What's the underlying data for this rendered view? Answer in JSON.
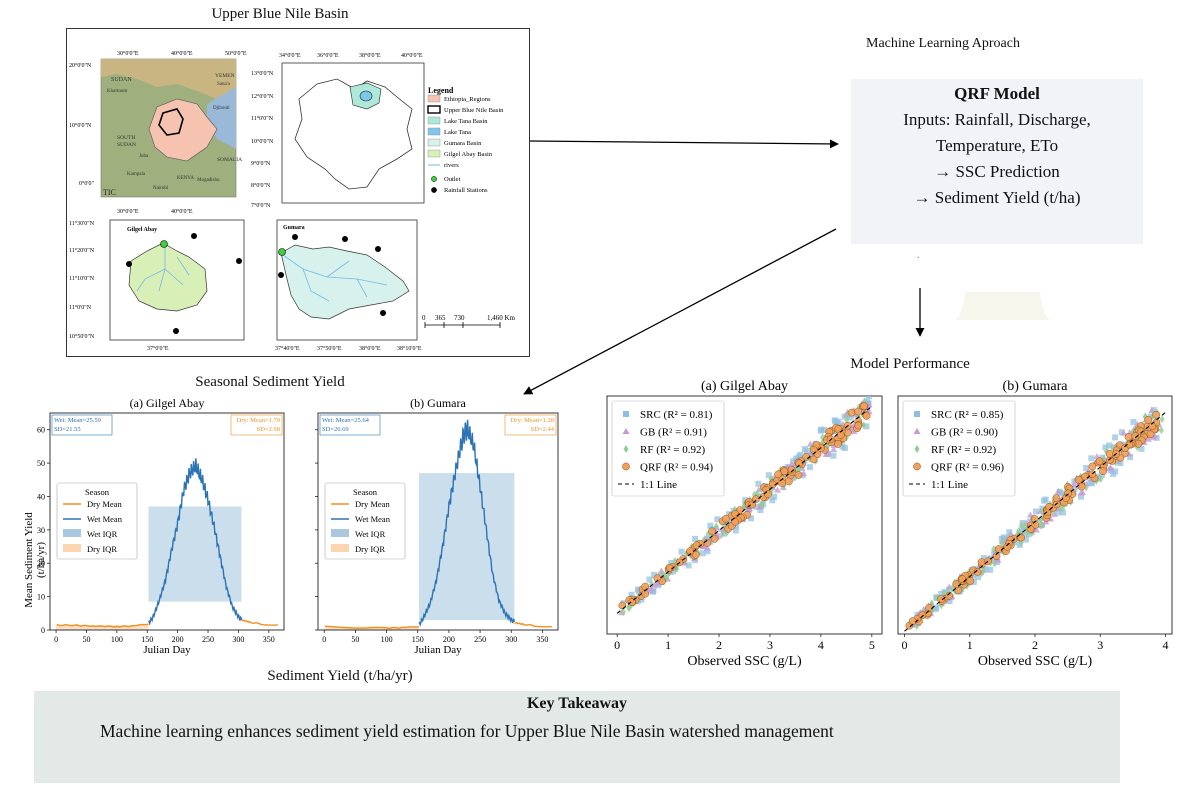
{
  "map_panel": {
    "title": "Upper Blue Nile Basin",
    "lon_ticks_a": [
      "30°0'0\"E",
      "40°0'0\"E",
      "50°0'0\"E"
    ],
    "lat_ticks_a": [
      "20°0'0\"N",
      "10°0'0\"N",
      "0°0'0\""
    ],
    "lon_ticks_b": [
      "34°0'0\"E",
      "36°0'0\"E",
      "38°0'0\"E",
      "40°0'0\"E"
    ],
    "lat_ticks_b": [
      "13°0'0\"N",
      "12°0'0\"N",
      "11°0'0\"N",
      "10°0'0\"N",
      "9°0'0\"N",
      "8°0'0\"N",
      "7°0'0\"N"
    ],
    "lon_ticks_c": [
      "30°0'0\"E",
      "40°0'0\"E"
    ],
    "lat_ticks_c": [
      "11°30'0\"N",
      "11°20'0\"N",
      "11°10'0\"N",
      "11°0'0\"N",
      "10°50'0\"N"
    ],
    "lon_tick_c_bottom": "37°0'0\"E",
    "lon_ticks_d_bottom": [
      "37°40'0\"E",
      "37°50'0\"E",
      "38°0'0\"E",
      "38°10'0\"E"
    ],
    "place_labels": [
      "SUDAN",
      "Khartoum",
      "YEMEN",
      "Sana'a",
      "Djibouti",
      "SOUTH",
      "SUDAN",
      "Juba",
      "SOMALIA",
      "Kampala",
      "Mogadishu",
      "Nairobi",
      "KENYA",
      "TIC"
    ],
    "inset_c_label": "Gilgel Abay",
    "inset_d_label": "Gumara",
    "legend_title": "Legend",
    "legend": [
      {
        "label": "Ethiopia_Regions",
        "color": "#f5c3b0",
        "kind": "fill"
      },
      {
        "label": "Upper Blue Nile Basin",
        "color": "#000000",
        "kind": "outline"
      },
      {
        "label": "Lake Tana Basin",
        "color": "#aee8d8",
        "kind": "fill"
      },
      {
        "label": "Lake Tana",
        "color": "#7ec6ec",
        "kind": "fill"
      },
      {
        "label": "Gumara Basin",
        "color": "#d7f2ec",
        "kind": "fill"
      },
      {
        "label": "Gilgel Abay Basin",
        "color": "#d9efb8",
        "kind": "fill"
      },
      {
        "label": "rivers",
        "color": "#74b7e3",
        "kind": "line"
      },
      {
        "label": "Outlet",
        "color": "#3ad13a",
        "kind": "point"
      },
      {
        "label": "Rainfall Stations",
        "color": "#000000",
        "kind": "point"
      }
    ],
    "scalebar": [
      "0",
      "365",
      "730",
      "1,460 Km"
    ]
  },
  "ml": {
    "title": "Machine Learning Aproach",
    "qrf_title": "QRF Model",
    "qrf_lines": [
      "Inputs: Rainfall, Discharge,",
      "Temperature, ETo",
      "→ SSC Prediction",
      "→ Sediment Yield (t/ha)"
    ],
    "dot": "."
  },
  "seasonal": {
    "title": "Seasonal Sediment Yield",
    "bottom_label": "Sediment Yield (t/ha/yr)",
    "ylabel_line1": "Mean Sediment Yield",
    "ylabel_line2": "(t/ha/yr)",
    "xlabel": "Julian Day",
    "yticks": [
      "0",
      "10",
      "20",
      "30",
      "40",
      "50",
      "60"
    ],
    "xticks": [
      "0",
      "50",
      "100",
      "150",
      "200",
      "250",
      "300",
      "350"
    ],
    "legend_title": "Season",
    "legend_items": [
      "Dry Mean",
      "Wet Mean",
      "Wet IQR",
      "Dry IQR"
    ],
    "panels": [
      {
        "title": "(a) Gilgel Abay",
        "wet_text_1": "Wet: Mean=25.59",
        "wet_text_2": "SD=21.55",
        "dry_text_1": "Dry: Mean=1.79",
        "dry_text_2": "SD=2.98"
      },
      {
        "title": "(b) Gumara",
        "wet_text_1": "Wet: Mean=25.64",
        "wet_text_2": "SD=26.69",
        "dry_text_1": "Dry: Mean=1.28",
        "dry_text_2": "SD=2.44"
      }
    ]
  },
  "performance": {
    "title": "Model Performance",
    "xlabel": "Observed SSC (g/L)",
    "panels": [
      {
        "title": "(a) Gilgel Abay",
        "xticks": [
          "0",
          "1",
          "2",
          "3",
          "4",
          "5"
        ],
        "legend": [
          "SRC (R² = 0.81)",
          "GB (R² = 0.91)",
          "RF (R² = 0.92)",
          "QRF (R² = 0.94)",
          "1:1 Line"
        ]
      },
      {
        "title": "(b) Gumara",
        "xticks": [
          "0",
          "1",
          "2",
          "3",
          "4"
        ],
        "legend": [
          "SRC (R² = 0.85)",
          "GB (R² = 0.90)",
          "RF (R² = 0.92)",
          "QRF (R² = 0.96)",
          "1:1 Line"
        ]
      }
    ]
  },
  "chart_data": [
    {
      "type": "line",
      "title": "(a) Gilgel Abay",
      "xlabel": "Julian Day",
      "ylabel": "Mean Sediment Yield (t/ha/yr)",
      "xlim": [
        -10,
        375
      ],
      "ylim": [
        0,
        65
      ],
      "grid": false,
      "legend_position": "center-left",
      "series": [
        {
          "name": "Dry Mean",
          "x": [
            1,
            30,
            60,
            100,
            130,
            152
          ],
          "y": [
            1.5,
            1.4,
            1.2,
            1.0,
            1.2,
            1.8
          ]
        },
        {
          "name": "Wet Mean",
          "x": [
            152,
            160,
            170,
            180,
            190,
            200,
            210,
            220,
            230,
            240,
            250,
            260,
            270,
            280,
            290,
            300,
            305
          ],
          "y": [
            2,
            4,
            9,
            15,
            24,
            32,
            42,
            47,
            49,
            45,
            39,
            31,
            22,
            13,
            7,
            4,
            3
          ]
        },
        {
          "name": "Dry Mean",
          "x": [
            305,
            320,
            340,
            365
          ],
          "y": [
            3,
            2.3,
            1.7,
            1.5
          ]
        }
      ],
      "wet_iqr": {
        "x_range": [
          152,
          305
        ],
        "y_range": [
          8.5,
          37
        ]
      },
      "dry_iqr": {
        "x_range": [
          0,
          152
        ],
        "y_range": [
          0,
          1.5
        ]
      }
    },
    {
      "type": "line",
      "title": "(b) Gumara",
      "xlabel": "Julian Day",
      "xlim": [
        -10,
        375
      ],
      "ylim": [
        0,
        65
      ],
      "grid": false,
      "legend_position": "center-left",
      "series": [
        {
          "name": "Dry Mean",
          "x": [
            1,
            50,
            100,
            130,
            152
          ],
          "y": [
            1.0,
            0.7,
            0.6,
            0.7,
            1.0
          ]
        },
        {
          "name": "Wet Mean",
          "x": [
            152,
            160,
            170,
            180,
            190,
            200,
            210,
            220,
            225,
            230,
            240,
            250,
            260,
            270,
            280,
            290,
            300,
            305
          ],
          "y": [
            1.5,
            4,
            8,
            15,
            25,
            37,
            47,
            56,
            59,
            60,
            55,
            43,
            30,
            17,
            9,
            5,
            3,
            2.5
          ]
        },
        {
          "name": "Dry Mean",
          "x": [
            305,
            320,
            340,
            365
          ],
          "y": [
            2.2,
            1.7,
            1.2,
            1.0
          ]
        }
      ],
      "wet_iqr": {
        "x_range": [
          152,
          305
        ],
        "y_range": [
          3,
          47
        ]
      },
      "dry_iqr": {
        "x_range": [
          0,
          152
        ],
        "y_range": [
          0,
          1.0
        ]
      }
    },
    {
      "type": "scatter",
      "title": "(a) Gilgel Abay",
      "xlabel": "Observed SSC (g/L)",
      "xlim": [
        -0.2,
        5.2
      ],
      "ylim": [
        -0.5,
        5.25
      ],
      "series": [
        {
          "name": "SRC (R² = 0.81)",
          "marker": "square",
          "color": "#8fbfe0",
          "spread": 0.35
        },
        {
          "name": "GB (R² = 0.91)",
          "marker": "triangle",
          "color": "#c79ad6",
          "spread": 0.24
        },
        {
          "name": "RF (R² = 0.92)",
          "marker": "diamond",
          "color": "#93cc93",
          "spread": 0.22
        },
        {
          "name": "QRF (R² = 0.94)",
          "marker": "circle",
          "color": "#f0a05a",
          "spread": 0.18
        }
      ],
      "reference": {
        "name": "1:1 Line",
        "from": [
          0,
          0
        ],
        "to": [
          5,
          5
        ]
      }
    },
    {
      "type": "scatter",
      "title": "(b) Gumara",
      "xlabel": "Observed SSC (g/L)",
      "xlim": [
        -0.1,
        4.1
      ],
      "ylim": [
        -0.05,
        4.3
      ],
      "series": [
        {
          "name": "SRC (R² = 0.85)",
          "marker": "square",
          "color": "#8fbfe0",
          "spread": 0.25
        },
        {
          "name": "GB (R² = 0.90)",
          "marker": "triangle",
          "color": "#c79ad6",
          "spread": 0.2
        },
        {
          "name": "RF (R² = 0.92)",
          "marker": "diamond",
          "color": "#93cc93",
          "spread": 0.18
        },
        {
          "name": "QRF (R² = 0.96)",
          "marker": "circle",
          "color": "#f0a05a",
          "spread": 0.12
        }
      ],
      "reference": {
        "name": "1:1 Line",
        "from": [
          0,
          0
        ],
        "to": [
          4,
          4
        ]
      }
    }
  ],
  "takeaway": {
    "title": "Key Takeaway",
    "text": "Machine learning enhances sediment yield estimation for Upper Blue Nile Basin watershed management"
  }
}
